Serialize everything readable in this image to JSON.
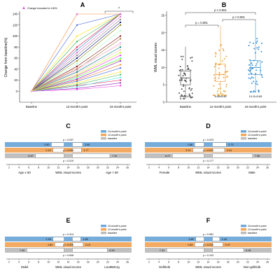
{
  "panels": {
    "A": {
      "letter": "A",
      "legend": "Change truncated to 140%",
      "ylabel": "Change from baseline(%)",
      "significance": "*",
      "chart_data": {
        "type": "line",
        "categories": [
          "Baseline",
          "12-month's point",
          "24-month's point"
        ],
        "ylim": [
          -20,
          140
        ],
        "yticks": [
          0,
          20,
          40,
          60,
          80,
          100,
          120,
          140
        ],
        "grid": false,
        "note": "individual patient trajectories (spaghetti plot)",
        "series_sample": [
          {
            "values": [
              0,
              10,
              20
            ]
          },
          {
            "values": [
              0,
              12,
              30
            ]
          },
          {
            "values": [
              0,
              15,
              35
            ]
          },
          {
            "values": [
              0,
              18,
              42
            ]
          },
          {
            "values": [
              0,
              20,
              48
            ]
          },
          {
            "values": [
              0,
              22,
              55
            ]
          },
          {
            "values": [
              0,
              25,
              60
            ]
          },
          {
            "values": [
              0,
              28,
              65
            ]
          },
          {
            "values": [
              0,
              30,
              70
            ]
          },
          {
            "values": [
              0,
              33,
              75
            ]
          },
          {
            "values": [
              0,
              35,
              80
            ]
          },
          {
            "values": [
              0,
              38,
              88
            ]
          },
          {
            "values": [
              0,
              40,
              95
            ]
          },
          {
            "values": [
              0,
              45,
              100
            ]
          },
          {
            "values": [
              0,
              50,
              110
            ]
          },
          {
            "values": [
              0,
              55,
              120
            ]
          },
          {
            "values": [
              0,
              60,
              125
            ]
          },
          {
            "values": [
              0,
              65,
              130
            ]
          },
          {
            "values": [
              0,
              70,
              135
            ]
          },
          {
            "values": [
              0,
              75,
              140
            ]
          },
          {
            "values": [
              0,
              80,
              140
            ]
          },
          {
            "values": [
              0,
              90,
              140
            ]
          },
          {
            "values": [
              0,
              100,
              140
            ]
          },
          {
            "values": [
              0,
              120,
              140
            ]
          },
          {
            "values": [
              0,
              140,
              140
            ]
          },
          {
            "values": [
              0,
              5,
              15
            ]
          },
          {
            "values": [
              0,
              8,
              25
            ]
          },
          {
            "values": [
              0,
              3,
              10
            ]
          },
          {
            "values": [
              0,
              26,
              58
            ]
          },
          {
            "values": [
              0,
              42,
              85
            ]
          }
        ]
      }
    },
    "B": {
      "letter": "B",
      "ylabel": "WML visual scores",
      "p_top": "p < 0.001",
      "p_left": "p = 0.001",
      "p_right": "p < 0.001",
      "chart_data": {
        "type": "box",
        "categories": [
          "Baseline",
          "12-month's point",
          "24-month's point"
        ],
        "ylim": [
          0,
          25
        ],
        "yticks": [
          0,
          5,
          10,
          15,
          20,
          25
        ],
        "colors": [
          "#555555",
          "#f0a040",
          "#3a8fd0"
        ],
        "boxes": [
          {
            "min": 1,
            "q1": 5,
            "median": 7,
            "q3": 9,
            "max": 16
          },
          {
            "min": 2,
            "q1": 6,
            "median": 8,
            "q3": 11,
            "max": 22
          },
          {
            "min": 3,
            "q1": 8,
            "median": 10,
            "q3": 12,
            "max": 23
          }
        ],
        "stats": [
          "8.48±3.84",
          "8.65±5.86",
          "10.11±3.85"
        ]
      }
    },
    "C": {
      "letter": "C",
      "xlabel": "WML visual scores",
      "legend": [
        "24-month's point",
        "12-month's point",
        "baseline"
      ],
      "left_label": "Age ≤ 60",
      "right_label": "Age > 60",
      "p_top": "p = 0.037",
      "p_mid": "p = 0.204",
      "p_bot": "p = 0.019",
      "xticks": [
        "2",
        "4",
        "6",
        "8",
        "10",
        "12",
        "14",
        "16",
        "18",
        "20",
        "22",
        "24",
        "26"
      ],
      "chart_data": {
        "type": "bar",
        "series": [
          {
            "name": "24-month's point",
            "left": 2.5,
            "right": 2.0
          },
          {
            "name": "12-month's point",
            "left": 2.19,
            "right": 1.77
          },
          {
            "name": "baseline",
            "left": 5.67,
            "right": 7.42
          }
        ]
      },
      "labels": {
        "r24l": "2.50",
        "r24r": "2.00",
        "r12l": "2.19",
        "r12r": "1.77",
        "rbl": "5.67",
        "rbr": "7.42"
      }
    },
    "D": {
      "letter": "D",
      "xlabel": "WML visual scores",
      "legend": [
        "24-month's point",
        "12-month's point",
        "baseline"
      ],
      "left_label": "Female",
      "right_label": "Male",
      "p_top": "p = 0.023",
      "p_mid": "p = 0.013",
      "p_bot": "p = 0.177",
      "xticks": [
        "2",
        "4",
        "6",
        "8",
        "10",
        "12",
        "14",
        "16",
        "18",
        "20",
        "22",
        "24",
        "26"
      ],
      "chart_data": {
        "type": "bar",
        "series": [
          {
            "name": "24-month's point",
            "left": 1.86,
            "right": 2.73
          },
          {
            "name": "12-month's point",
            "left": 2.21,
            "right": 2.41
          },
          {
            "name": "baseline",
            "left": 6.27,
            "right": 7.96
          }
        ]
      },
      "labels": {
        "r24l": "1.86",
        "r24r": "2.73",
        "r12l": "2.21",
        "r12r": "2.41",
        "rbl": "6.27",
        "rbr": "7.96"
      }
    },
    "E": {
      "letter": "E",
      "xlabel": "WML visual scores",
      "legend": [
        "24-month's point",
        "12-month's point",
        "baseline"
      ],
      "left_label": "19del",
      "right_label": "Leu858Arg",
      "p_top": "p = 0.314",
      "p_mid": "p = 0.476",
      "p_bot": "p = 0.608",
      "xticks": [
        "2",
        "4",
        "6",
        "8",
        "10",
        "12",
        "14",
        "16",
        "18",
        "20",
        "22",
        "24",
        "26"
      ],
      "chart_data": {
        "type": "bar",
        "series": [
          {
            "name": "24-month's point",
            "left": 2.18,
            "right": 1.65
          },
          {
            "name": "12-month's point",
            "left": 1.82,
            "right": 2.1
          },
          {
            "name": "baseline",
            "left": 7.4,
            "right": 6.9
          }
        ]
      },
      "labels": {
        "r24l": "2.18",
        "r24r": "1.65",
        "r12l": "1.82",
        "r12r": "2.10",
        "rbl": "7.40",
        "rbr": "6.90"
      }
    },
    "F": {
      "letter": "F",
      "xlabel": "WML visual scores",
      "legend": [
        "24-month's point",
        "12-month's point",
        "baseline"
      ],
      "left_label": "Gefitinib",
      "right_label": "Non-gefitinib",
      "p_top": "p = 0.981",
      "p_mid": "p = 0.215",
      "p_bot": "p = 0.103",
      "xticks": [
        "2",
        "4",
        "6",
        "8",
        "10",
        "12",
        "14",
        "16",
        "18",
        "20",
        "22",
        "24",
        "26"
      ],
      "chart_data": {
        "type": "bar",
        "series": [
          {
            "name": "24-month's point",
            "left": 1.65,
            "right": 1.42
          },
          {
            "name": "12-month's point",
            "left": 1.83,
            "right": 2.07
          },
          {
            "name": "baseline",
            "left": 7.41,
            "right": 6.18
          }
        ]
      },
      "labels": {
        "r24l": "1.65",
        "r24r": "1.42",
        "r12l": "1.83",
        "r12r": "2.07",
        "rbl": "7.41",
        "rbr": "6.18"
      }
    }
  },
  "colors": {
    "blue": "#6fa8d8",
    "orange": "#f2a75c",
    "gray": "#bdbdbd",
    "pink": "#d966d0"
  }
}
